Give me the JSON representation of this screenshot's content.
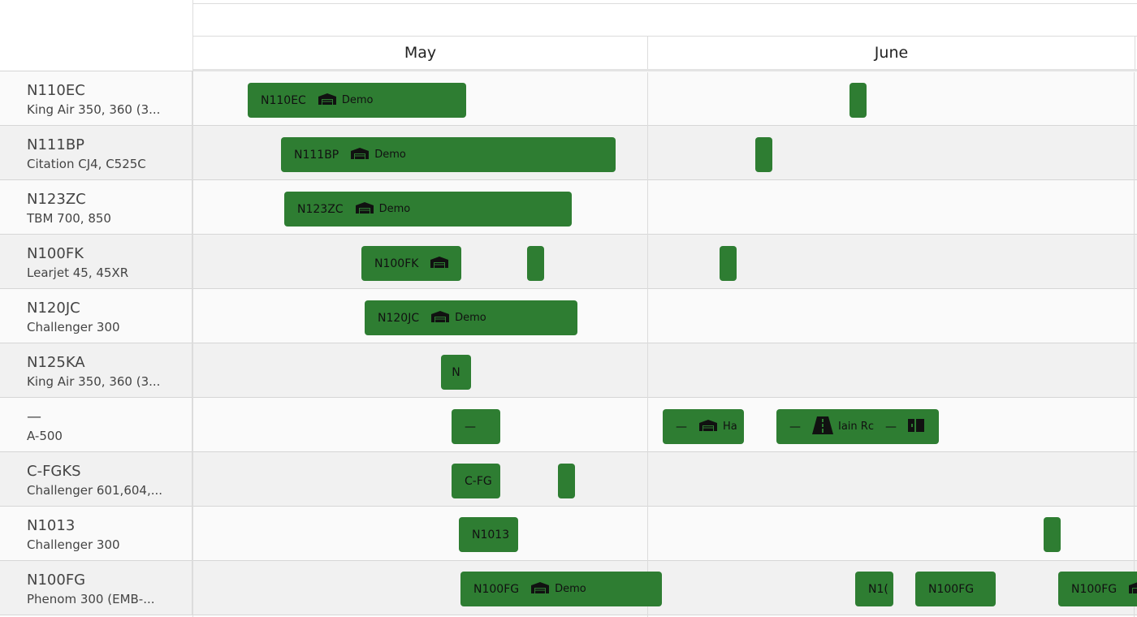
{
  "header": {
    "months": [
      "May",
      "June"
    ]
  },
  "rows": [
    {
      "reg": "N110EC",
      "model": "King Air 350, 360 (3..."
    },
    {
      "reg": "N111BP",
      "model": "Citation CJ4, C525C"
    },
    {
      "reg": "N123ZC",
      "model": "TBM 700, 850"
    },
    {
      "reg": "N100FK",
      "model": "Learjet 45, 45XR"
    },
    {
      "reg": "N120JC",
      "model": "Challenger 300"
    },
    {
      "reg": "N125KA",
      "model": "King Air 350, 360 (3..."
    },
    {
      "reg": "—",
      "model": "A-500"
    },
    {
      "reg": "C-FGKS",
      "model": "Challenger 601,604,..."
    },
    {
      "reg": "N1013",
      "model": "Challenger 300"
    },
    {
      "reg": "N100FG",
      "model": "Phenom 300 (EMB-..."
    }
  ],
  "events": {
    "r0": {
      "reg": "N110EC",
      "tag": "Demo"
    },
    "r1": {
      "reg": "N111BP",
      "tag": "Demo"
    },
    "r2": {
      "reg": "N123ZC",
      "tag": "Demo"
    },
    "r3": {
      "reg": "N100FK"
    },
    "r4": {
      "reg": "N120JC",
      "tag": "Demo"
    },
    "r5": {
      "reg": "N"
    },
    "r6a": {
      "reg": "—"
    },
    "r6b": {
      "reg": "—",
      "tag": "Ha"
    },
    "r6c": {
      "reg": "—",
      "tag": "Iain Rc",
      "trail": "—"
    },
    "r7": {
      "reg": "C-FG"
    },
    "r8": {
      "reg": "N1013"
    },
    "r9a": {
      "reg": "N100FG",
      "tag": "Demo"
    },
    "r9b": {
      "reg": "N1("
    },
    "r9c": {
      "reg": "N100FG"
    },
    "r9d": {
      "reg": "N100FG"
    }
  },
  "icons": {
    "hangar": "hangar-icon",
    "runway": "runway-icon"
  },
  "colors": {
    "event": "#2e7d32",
    "row_alt": "#f1f1f1",
    "row": "#fafafa"
  }
}
